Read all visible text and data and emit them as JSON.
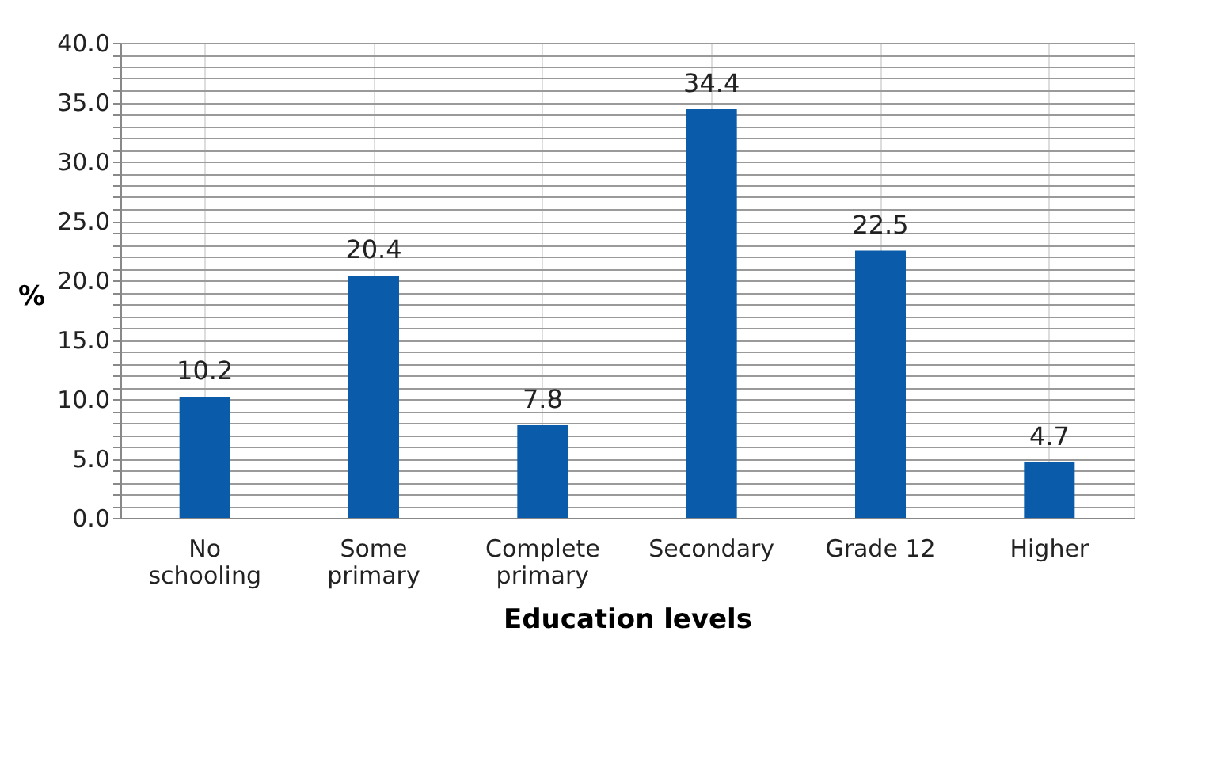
{
  "chart_data": {
    "type": "bar",
    "xlabel": "Education levels",
    "ylabel": "%",
    "categories": [
      "No schooling",
      "Some primary",
      "Complete primary",
      "Secondary",
      "Grade 12",
      "Higher"
    ],
    "values": [
      10.2,
      20.4,
      7.8,
      34.4,
      22.5,
      4.7
    ],
    "color": "#0a5cab",
    "data_labels": true,
    "ylim": [
      0,
      40
    ],
    "yticks": [
      {
        "value": 0,
        "label": "0.0"
      },
      {
        "value": 1,
        "label": null
      },
      {
        "value": 2,
        "label": null
      },
      {
        "value": 3,
        "label": null
      },
      {
        "value": 4,
        "label": null
      },
      {
        "value": 5,
        "label": "5.0"
      },
      {
        "value": 6,
        "label": null
      },
      {
        "value": 7,
        "label": null
      },
      {
        "value": 8,
        "label": null
      },
      {
        "value": 9,
        "label": null
      },
      {
        "value": 10,
        "label": "10.0"
      },
      {
        "value": 11,
        "label": null
      },
      {
        "value": 12,
        "label": null
      },
      {
        "value": 13,
        "label": null
      },
      {
        "value": 14,
        "label": null
      },
      {
        "value": 15,
        "label": "15.0"
      },
      {
        "value": 16,
        "label": null
      },
      {
        "value": 17,
        "label": null
      },
      {
        "value": 18,
        "label": null
      },
      {
        "value": 19,
        "label": null
      },
      {
        "value": 20,
        "label": "20.0"
      },
      {
        "value": 21,
        "label": null
      },
      {
        "value": 22,
        "label": null
      },
      {
        "value": 23,
        "label": null
      },
      {
        "value": 24,
        "label": null
      },
      {
        "value": 25,
        "label": "25.0"
      },
      {
        "value": 26,
        "label": null
      },
      {
        "value": 27,
        "label": null
      },
      {
        "value": 28,
        "label": null
      },
      {
        "value": 29,
        "label": null
      },
      {
        "value": 30,
        "label": "30.0"
      },
      {
        "value": 31,
        "label": null
      },
      {
        "value": 32,
        "label": null
      },
      {
        "value": 33,
        "label": null
      },
      {
        "value": 34,
        "label": null
      },
      {
        "value": 35,
        "label": "35.0"
      },
      {
        "value": 36,
        "label": null
      },
      {
        "value": 37,
        "label": null
      },
      {
        "value": 38,
        "label": null
      },
      {
        "value": 39,
        "label": null
      },
      {
        "value": 40,
        "label": "40.0"
      }
    ],
    "grid": true
  }
}
